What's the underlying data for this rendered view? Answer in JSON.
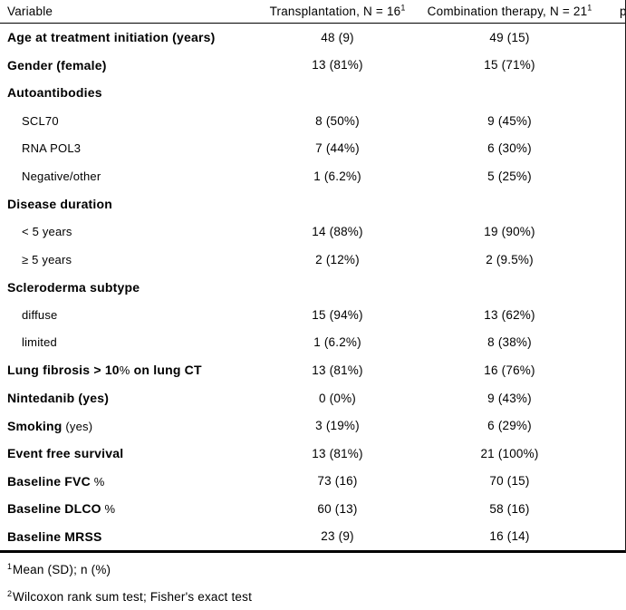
{
  "table": {
    "header": {
      "variable_label": "Variable",
      "col1_label": "Transplantation, N = 16",
      "col1_sup": "1",
      "col2_label": "Combination therapy, N = 21",
      "col2_sup": "1",
      "p_partial_label": "p"
    },
    "rows": [
      {
        "segments": [
          {
            "t": "Age at treatment initiation (years)",
            "b": true
          }
        ],
        "indent": false,
        "v1": "48 (9)",
        "v2": "49 (15)"
      },
      {
        "segments": [
          {
            "t": "Gender (female)",
            "b": true
          }
        ],
        "indent": false,
        "v1": "13 (81%)",
        "v2": "15 (71%)"
      },
      {
        "segments": [
          {
            "t": "Autoantibodies",
            "b": true
          }
        ],
        "indent": false,
        "v1": "",
        "v2": ""
      },
      {
        "segments": [
          {
            "t": "SCL70",
            "b": false
          }
        ],
        "indent": true,
        "v1": "8 (50%)",
        "v2": "9 (45%)"
      },
      {
        "segments": [
          {
            "t": "RNA POL3",
            "b": false
          }
        ],
        "indent": true,
        "v1": "7 (44%)",
        "v2": "6 (30%)"
      },
      {
        "segments": [
          {
            "t": "Negative/other",
            "b": false
          }
        ],
        "indent": true,
        "v1": "1 (6.2%)",
        "v2": "5 (25%)"
      },
      {
        "segments": [
          {
            "t": "Disease duration",
            "b": true
          }
        ],
        "indent": false,
        "v1": "",
        "v2": ""
      },
      {
        "segments": [
          {
            "t": "< 5 years",
            "b": false
          }
        ],
        "indent": true,
        "v1": "14 (88%)",
        "v2": "19 (90%)"
      },
      {
        "segments": [
          {
            "t": "≥ 5 years",
            "b": false
          }
        ],
        "indent": true,
        "v1": "2 (12%)",
        "v2": "2 (9.5%)"
      },
      {
        "segments": [
          {
            "t": "Scleroderma subtype",
            "b": true
          }
        ],
        "indent": false,
        "v1": "",
        "v2": ""
      },
      {
        "segments": [
          {
            "t": "diffuse",
            "b": false
          }
        ],
        "indent": true,
        "v1": "15 (94%)",
        "v2": "13 (62%)"
      },
      {
        "segments": [
          {
            "t": "limited",
            "b": false
          }
        ],
        "indent": true,
        "v1": "1 (6.2%)",
        "v2": "8 (38%)"
      },
      {
        "segments": [
          {
            "t": "Lung fibrosis > 10",
            "b": true
          },
          {
            "t": "%",
            "b": false
          },
          {
            "t": " on lung CT",
            "b": true
          }
        ],
        "indent": false,
        "v1": "13 (81%)",
        "v2": "16 (76%)"
      },
      {
        "segments": [
          {
            "t": "Nintedanib (yes)",
            "b": true
          }
        ],
        "indent": false,
        "v1": "0 (0%)",
        "v2": "9 (43%)"
      },
      {
        "segments": [
          {
            "t": "Smoking",
            "b": true
          },
          {
            "t": " (yes)",
            "b": false
          }
        ],
        "indent": false,
        "v1": "3 (19%)",
        "v2": "6 (29%)"
      },
      {
        "segments": [
          {
            "t": "Event free survival",
            "b": true
          }
        ],
        "indent": false,
        "v1": "13 (81%)",
        "v2": "21 (100%)"
      },
      {
        "segments": [
          {
            "t": "Baseline FVC",
            "b": true
          },
          {
            "t": " %",
            "b": false
          }
        ],
        "indent": false,
        "v1": "73 (16)",
        "v2": "70 (15)"
      },
      {
        "segments": [
          {
            "t": "Baseline DLCO",
            "b": true
          },
          {
            "t": " %",
            "b": false
          }
        ],
        "indent": false,
        "v1": "60 (13)",
        "v2": "58 (16)"
      },
      {
        "segments": [
          {
            "t": "Baseline MRSS",
            "b": true
          }
        ],
        "indent": false,
        "v1": "23 (9)",
        "v2": "16 (14)"
      }
    ],
    "footnotes": [
      {
        "sup": "1",
        "text": "Mean (SD); n (%)"
      },
      {
        "sup": "2",
        "text": "Wilcoxon rank sum test; Fisher's exact test"
      }
    ]
  },
  "colors": {
    "text": "#000000",
    "rule": "#000000"
  }
}
